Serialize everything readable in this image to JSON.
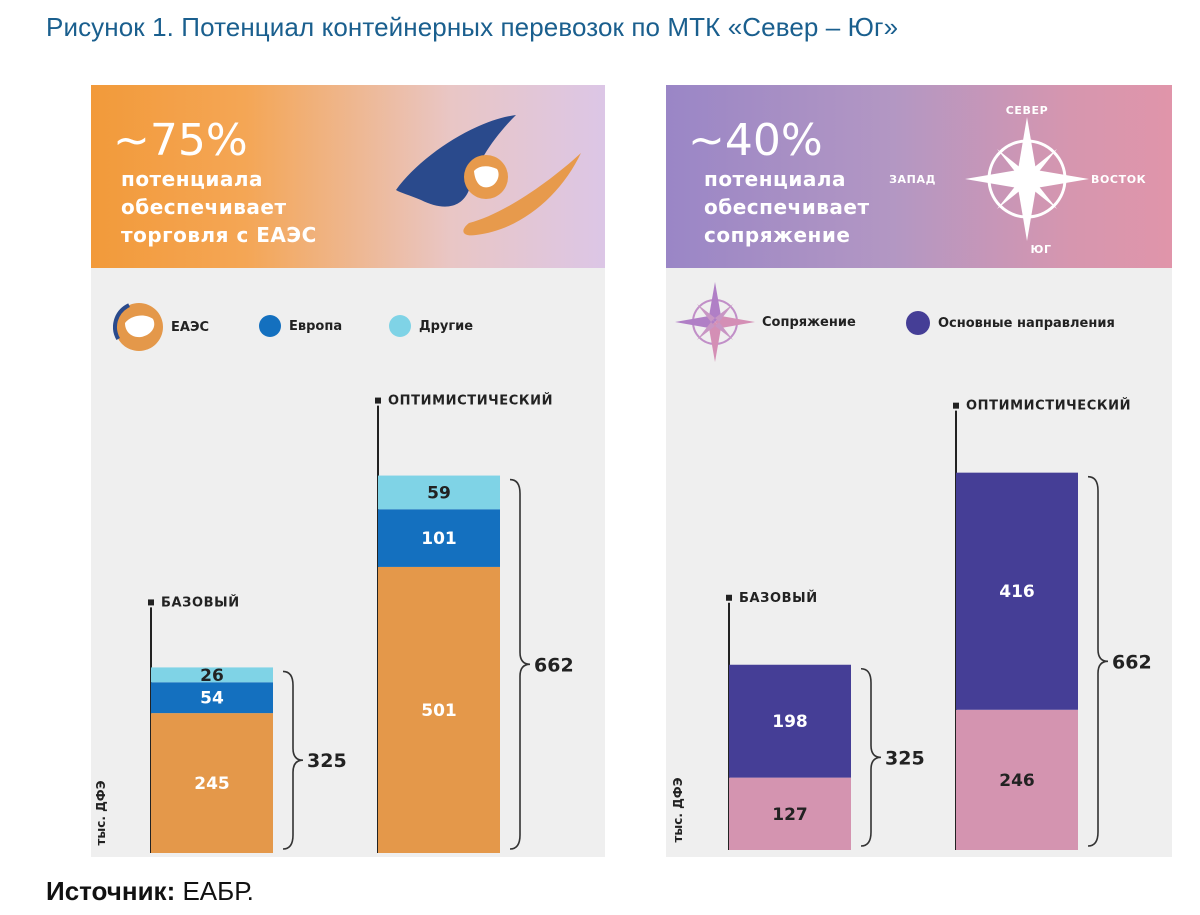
{
  "figure_title": "Рисунок 1. Потенциал контейнерных перевозок по МТК «Север – Юг»",
  "source": {
    "label": "Источник:",
    "value": " ЕАБР."
  },
  "chart_data": [
    {
      "type": "bar",
      "stacked": true,
      "banner": {
        "percent": "~75%",
        "lines": [
          "потенциала",
          "обеспечивает",
          "торговля с ЕАЭС"
        ]
      },
      "legend": [
        "ЕАЭС",
        "Европа",
        "Другие"
      ],
      "ylabel": "тыс. ДФЭ",
      "categories": [
        "БАЗОВЫЙ",
        "ОПТИМИСТИЧЕСКИЙ"
      ],
      "series": [
        {
          "name": "ЕАЭС",
          "color": "#e4984a",
          "values": [
            245,
            501
          ]
        },
        {
          "name": "Европа",
          "color": "#1470bf",
          "values": [
            54,
            101
          ]
        },
        {
          "name": "Другие",
          "color": "#7fd3e6",
          "values": [
            26,
            59
          ]
        }
      ],
      "totals": [
        "325",
        "662"
      ],
      "ylim": [
        0,
        662
      ]
    },
    {
      "type": "bar",
      "stacked": true,
      "banner": {
        "percent": "~40%",
        "lines": [
          "потенциала",
          "обеспечивает",
          "сопряжение"
        ]
      },
      "compass": {
        "north": "СЕВЕР",
        "south": "ЮГ",
        "west": "ЗАПАД",
        "east": "ВОСТОК"
      },
      "legend": [
        "Сопряжение",
        "Основные направления"
      ],
      "ylabel": "тыс. ДФЭ",
      "categories": [
        "БАЗОВЫЙ",
        "ОПТИМИСТИЧЕСКИЙ"
      ],
      "series": [
        {
          "name": "Сопряжение",
          "color": "#d494b0",
          "values": [
            127,
            246
          ]
        },
        {
          "name": "Основные направления",
          "color": "#453e96",
          "values": [
            198,
            416
          ]
        }
      ],
      "totals": [
        "325",
        "662"
      ],
      "ylim": [
        0,
        662
      ]
    }
  ],
  "colors": {
    "title": "#1a5f8e",
    "eaes": "#e4984a",
    "europe": "#1470bf",
    "other": "#7fd3e6",
    "main_directions": "#453e96",
    "conjugation": "#d494b0"
  }
}
